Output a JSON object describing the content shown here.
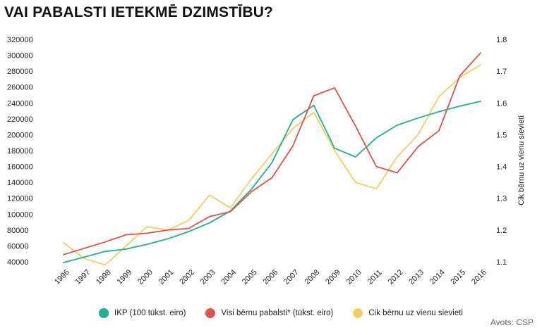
{
  "title": "VAI PABALSTI IETEKMĒ DZIMSTĪBU?",
  "source": "Avots: CSP",
  "colors": {
    "ikp": "#20b08e",
    "pabalsti": "#e0524a",
    "dzimstiba": "#f2cf66"
  },
  "chart_data": {
    "type": "line",
    "x": [
      "1996",
      "1997",
      "1998",
      "1999",
      "2000",
      "2001",
      "2002",
      "2003",
      "2004",
      "2005",
      "2006",
      "2007",
      "2008",
      "2009",
      "2010",
      "2011",
      "2012",
      "2013",
      "2014",
      "2015",
      "2016"
    ],
    "left_axis": {
      "ylim": [
        40000,
        320000
      ],
      "ticks": [
        "40000",
        "60000",
        "80000",
        "100000",
        "120000",
        "140000",
        "160000",
        "180000",
        "200000",
        "220000",
        "240000",
        "260000",
        "280000",
        "300000",
        "320000"
      ]
    },
    "right_axis": {
      "label": "Cik bērnu uz vienu sievieti",
      "ylim": [
        1.1,
        1.8
      ],
      "ticks": [
        "1.1",
        "1.2",
        "1.3",
        "1.4",
        "1.5",
        "1.6",
        "1.7",
        "1.8"
      ]
    },
    "series": [
      {
        "name": "IKP (100 tūkst. eiro)",
        "axis": "left",
        "color": "#20b08e",
        "values": [
          39000,
          46000,
          53000,
          56000,
          62000,
          69000,
          78000,
          89000,
          104000,
          131000,
          165000,
          219000,
          237000,
          183000,
          172000,
          196000,
          212000,
          221000,
          229000,
          236000,
          242000
        ]
      },
      {
        "name": "Visi bērnu pabalsti* (tūkst. eiro)",
        "axis": "left",
        "color": "#e0524a",
        "values": [
          49000,
          57000,
          65000,
          74000,
          76000,
          80000,
          82000,
          97000,
          103000,
          128000,
          146000,
          186000,
          249000,
          259000,
          211000,
          160000,
          152000,
          185000,
          205000,
          274000,
          303000
        ]
      },
      {
        "name": "Cik bērnu uz vienu sievieti",
        "axis": "right",
        "color": "#f2cf66",
        "values": [
          1.16,
          1.11,
          1.09,
          1.15,
          1.21,
          1.2,
          1.23,
          1.31,
          1.27,
          1.36,
          1.44,
          1.52,
          1.57,
          1.45,
          1.35,
          1.33,
          1.43,
          1.5,
          1.62,
          1.68,
          1.72
        ]
      }
    ]
  }
}
